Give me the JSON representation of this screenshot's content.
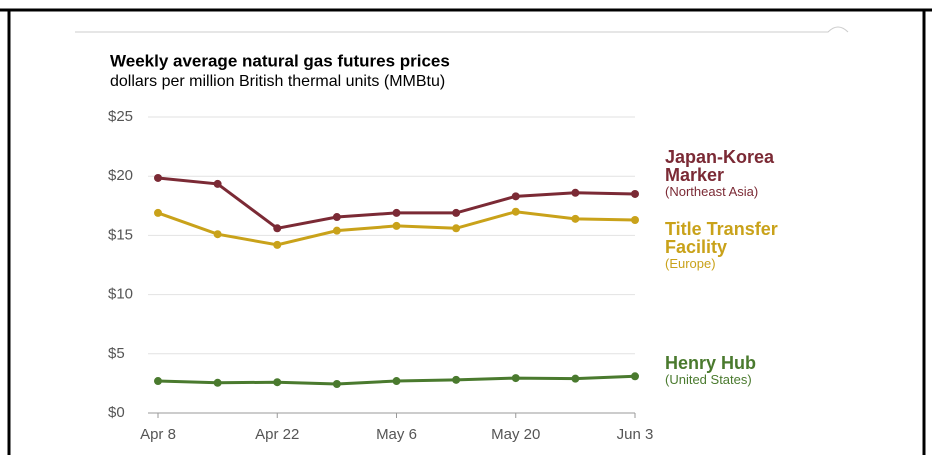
{
  "chart_data": {
    "type": "line",
    "title": "Weekly average natural gas futures prices",
    "subtitle": "dollars per million British thermal units (MMBtu)",
    "categories": [
      "Apr 8",
      null,
      "Apr 22",
      null,
      "May 6",
      null,
      "May 20",
      null,
      "Jun 3"
    ],
    "series": [
      {
        "name": "Japan-Korea Marker",
        "region": "(Northeast Asia)",
        "color": "#7b2a35",
        "values": [
          19.85,
          19.35,
          15.6,
          16.55,
          16.9,
          16.9,
          18.3,
          18.6,
          18.5
        ]
      },
      {
        "name": "Title Transfer Facility",
        "region": "(Europe)",
        "color": "#c9a21a",
        "values": [
          16.9,
          15.1,
          14.2,
          15.4,
          15.8,
          15.6,
          17.0,
          16.4,
          16.3
        ]
      },
      {
        "name": "Henry Hub",
        "region": "(United States)",
        "color": "#4a7a2e",
        "values": [
          2.7,
          2.55,
          2.6,
          2.45,
          2.7,
          2.8,
          2.95,
          2.9,
          3.1
        ]
      }
    ],
    "ylim": [
      0,
      25
    ],
    "yticks": [
      {
        "value": 0,
        "label": "$0"
      },
      {
        "value": 5,
        "label": "$5"
      },
      {
        "value": 10,
        "label": "$10"
      },
      {
        "value": 15,
        "label": "$15"
      },
      {
        "value": 20,
        "label": "$20"
      },
      {
        "value": 25,
        "label": "$25"
      }
    ],
    "grid": true
  }
}
